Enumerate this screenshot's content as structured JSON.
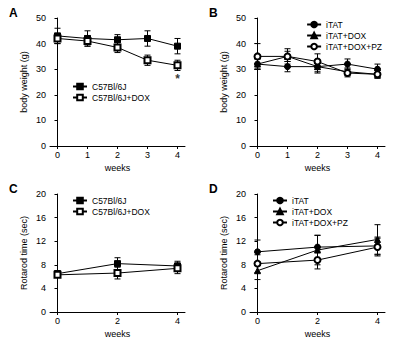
{
  "chart_data": [
    {
      "type": "line",
      "title": "A",
      "x_label": "weeks",
      "y_label": "body weight (g)",
      "x": [
        0,
        1,
        2,
        3,
        4
      ],
      "xlim": [
        -0.25,
        4.25
      ],
      "xticks": [
        0,
        1,
        2,
        3,
        4
      ],
      "ylim": [
        0,
        50
      ],
      "yticks": [
        0,
        10,
        20,
        30,
        40,
        50
      ],
      "grid": false,
      "legend": "center left",
      "series": [
        {
          "name": "C57Bl/6J",
          "color": "#000000",
          "marker": "square",
          "values": [
            43,
            42,
            41.5,
            42,
            39
          ],
          "errors": [
            3,
            3,
            2,
            3,
            3
          ]
        },
        {
          "name": "C57Bl/6J+DOX",
          "color": "#000000",
          "marker": "square-open",
          "values": [
            42,
            41,
            38.5,
            33.5,
            31.5
          ],
          "errors": [
            2,
            2,
            2,
            2,
            2
          ]
        }
      ],
      "annotations": [
        {
          "text": "*",
          "x": 4,
          "y": 26
        }
      ]
    },
    {
      "type": "line",
      "title": "B",
      "x_label": "weeks",
      "y_label": "body weight (g)",
      "x": [
        0,
        1,
        2,
        3,
        4
      ],
      "xlim": [
        -0.25,
        4.25
      ],
      "xticks": [
        0,
        1,
        2,
        3,
        4
      ],
      "ylim": [
        0,
        50
      ],
      "yticks": [
        0,
        10,
        20,
        30,
        40,
        50
      ],
      "grid": false,
      "legend": "upper right",
      "series": [
        {
          "name": "iTAT",
          "color": "#000000",
          "marker": "circle",
          "values": [
            32,
            31,
            31,
            32,
            30
          ],
          "errors": [
            2,
            2,
            2,
            2,
            2
          ]
        },
        {
          "name": "iTAT+DOX",
          "color": "#000000",
          "marker": "triangle",
          "values": [
            32,
            35,
            31,
            29,
            28
          ],
          "errors": [
            2,
            2,
            2.5,
            1.5,
            1.5
          ]
        },
        {
          "name": "iTAT+DOX+PZ",
          "color": "#000000",
          "marker": "circle-open",
          "values": [
            35,
            35,
            33,
            28.5,
            28
          ],
          "errors": [
            5,
            3,
            3,
            1.5,
            1.5
          ]
        }
      ]
    },
    {
      "type": "line",
      "title": "C",
      "x_label": "weeks",
      "y_label": "Rotarod time (sec)",
      "x": [
        0,
        2,
        4
      ],
      "xlim": [
        -0.25,
        4.25
      ],
      "xticks": [
        0,
        2,
        4
      ],
      "ylim": [
        0,
        20
      ],
      "yticks": [
        0,
        4,
        8,
        12,
        16,
        20
      ],
      "grid": false,
      "legend": "upper left",
      "series": [
        {
          "name": "C57Bl/6J",
          "color": "#000000",
          "marker": "square",
          "values": [
            6.5,
            8.2,
            7.8
          ],
          "errors": [
            0.5,
            1,
            0.8
          ]
        },
        {
          "name": "C57Bl/6J+DOX",
          "color": "#000000",
          "marker": "square-open",
          "values": [
            6.3,
            6.6,
            7.4
          ],
          "errors": [
            0.4,
            1,
            0.9
          ]
        }
      ]
    },
    {
      "type": "line",
      "title": "D",
      "x_label": "weeks",
      "y_label": "Rotarod time (sec)",
      "x": [
        0,
        2,
        4
      ],
      "xlim": [
        -0.25,
        4.25
      ],
      "xticks": [
        0,
        2,
        4
      ],
      "ylim": [
        0,
        20
      ],
      "yticks": [
        0,
        4,
        8,
        12,
        16,
        20
      ],
      "grid": false,
      "legend": "upper left",
      "series": [
        {
          "name": "iTAT",
          "color": "#000000",
          "marker": "circle",
          "values": [
            10.2,
            11,
            11.2
          ],
          "errors": [
            2,
            2,
            1.5
          ]
        },
        {
          "name": "iTAT+DOX",
          "color": "#000000",
          "marker": "triangle",
          "values": [
            7,
            10.5,
            12.3
          ],
          "errors": [
            1.5,
            2.5,
            2.5
          ]
        },
        {
          "name": "iTAT+DOX+PZ",
          "color": "#000000",
          "marker": "circle-open",
          "values": [
            8.2,
            8.8,
            11
          ],
          "errors": [
            1.5,
            1.5,
            1.5
          ]
        }
      ]
    }
  ]
}
